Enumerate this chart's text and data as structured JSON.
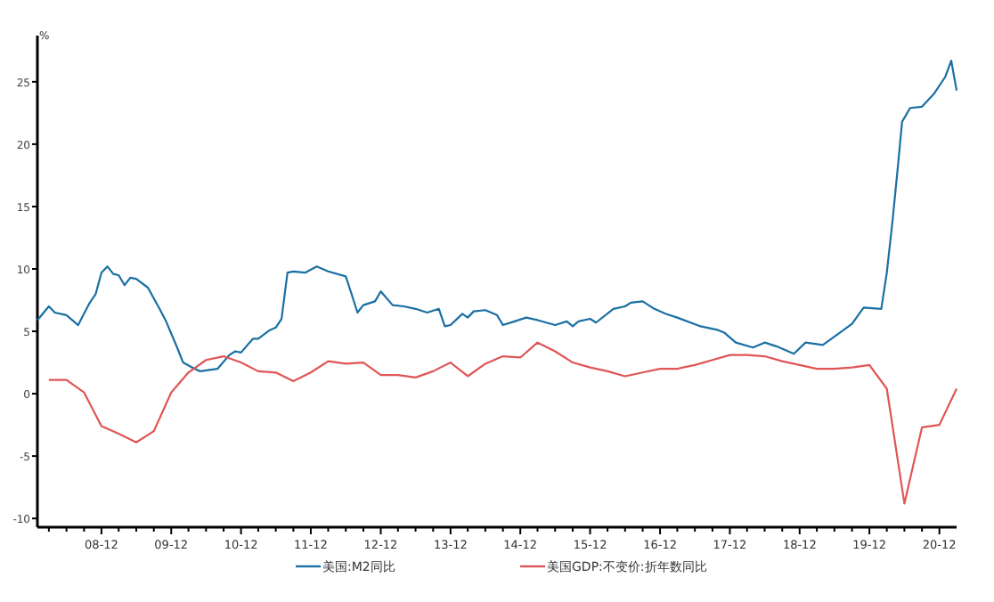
{
  "chart_data": {
    "type": "line",
    "ylabel": "%",
    "legend": "bottom",
    "xlim": [
      "2008-01",
      "2021-03"
    ],
    "ylim": [
      -10.7,
      28.7
    ],
    "yticks": [
      -10,
      -5,
      0,
      5,
      10,
      15,
      20,
      25
    ],
    "xticks": [
      {
        "value": "2008-03",
        "label": null
      },
      {
        "value": "2008-06",
        "label": null
      },
      {
        "value": "2008-09",
        "label": null
      },
      {
        "value": "2008-12",
        "label": "08-12"
      },
      {
        "value": "2009-03",
        "label": null
      },
      {
        "value": "2009-06",
        "label": null
      },
      {
        "value": "2009-09",
        "label": null
      },
      {
        "value": "2009-12",
        "label": "09-12"
      },
      {
        "value": "2010-03",
        "label": null
      },
      {
        "value": "2010-06",
        "label": null
      },
      {
        "value": "2010-09",
        "label": null
      },
      {
        "value": "2010-12",
        "label": "10-12"
      },
      {
        "value": "2011-03",
        "label": null
      },
      {
        "value": "2011-06",
        "label": null
      },
      {
        "value": "2011-09",
        "label": null
      },
      {
        "value": "2011-12",
        "label": "11-12"
      },
      {
        "value": "2012-03",
        "label": null
      },
      {
        "value": "2012-06",
        "label": null
      },
      {
        "value": "2012-09",
        "label": null
      },
      {
        "value": "2012-12",
        "label": "12-12"
      },
      {
        "value": "2013-03",
        "label": null
      },
      {
        "value": "2013-06",
        "label": null
      },
      {
        "value": "2013-09",
        "label": null
      },
      {
        "value": "2013-12",
        "label": "13-12"
      },
      {
        "value": "2014-03",
        "label": null
      },
      {
        "value": "2014-06",
        "label": null
      },
      {
        "value": "2014-09",
        "label": null
      },
      {
        "value": "2014-12",
        "label": "14-12"
      },
      {
        "value": "2015-03",
        "label": null
      },
      {
        "value": "2015-06",
        "label": null
      },
      {
        "value": "2015-09",
        "label": null
      },
      {
        "value": "2015-12",
        "label": "15-12"
      },
      {
        "value": "2016-03",
        "label": null
      },
      {
        "value": "2016-06",
        "label": null
      },
      {
        "value": "2016-09",
        "label": null
      },
      {
        "value": "2016-12",
        "label": "16-12"
      },
      {
        "value": "2017-03",
        "label": null
      },
      {
        "value": "2017-06",
        "label": null
      },
      {
        "value": "2017-09",
        "label": null
      },
      {
        "value": "2017-12",
        "label": "17-12"
      },
      {
        "value": "2018-03",
        "label": null
      },
      {
        "value": "2018-06",
        "label": null
      },
      {
        "value": "2018-09",
        "label": null
      },
      {
        "value": "2018-12",
        "label": "18-12"
      },
      {
        "value": "2019-03",
        "label": null
      },
      {
        "value": "2019-06",
        "label": null
      },
      {
        "value": "2019-09",
        "label": null
      },
      {
        "value": "2019-12",
        "label": "19-12"
      },
      {
        "value": "2020-03",
        "label": null
      },
      {
        "value": "2020-06",
        "label": null
      },
      {
        "value": "2020-09",
        "label": null
      },
      {
        "value": "2020-12",
        "label": "20-12"
      }
    ],
    "series": [
      {
        "name": "美国:M2同比",
        "color": "#1a6fa3",
        "x": [
          "2008-01",
          "2008-03",
          "2008-04",
          "2008-06",
          "2008-08",
          "2008-10",
          "2008-11",
          "2008-12",
          "2009-01",
          "2009-02",
          "2009-03",
          "2009-04",
          "2009-05",
          "2009-06",
          "2009-08",
          "2009-10",
          "2009-11",
          "2010-01",
          "2010-02",
          "2010-04",
          "2010-05",
          "2010-08",
          "2010-10",
          "2010-11",
          "2010-12",
          "2011-02",
          "2011-03",
          "2011-05",
          "2011-06",
          "2011-07",
          "2011-08",
          "2011-09",
          "2011-11",
          "2012-01",
          "2012-03",
          "2012-06",
          "2012-07",
          "2012-08",
          "2012-09",
          "2012-11",
          "2012-12",
          "2013-02",
          "2013-04",
          "2013-06",
          "2013-08",
          "2013-10",
          "2013-11",
          "2013-12",
          "2014-02",
          "2014-03",
          "2014-04",
          "2014-06",
          "2014-08",
          "2014-09",
          "2014-11",
          "2015-01",
          "2015-03",
          "2015-06",
          "2015-08",
          "2015-09",
          "2015-10",
          "2015-12",
          "2016-01",
          "2016-04",
          "2016-06",
          "2016-07",
          "2016-09",
          "2016-11",
          "2017-01",
          "2017-03",
          "2017-07",
          "2017-10",
          "2017-11",
          "2018-01",
          "2018-04",
          "2018-06",
          "2018-08",
          "2018-11",
          "2019-01",
          "2019-04",
          "2019-07",
          "2019-09",
          "2019-11",
          "2020-02",
          "2020-03",
          "2020-04",
          "2020-05-01",
          "2020-05-20",
          "2020-07",
          "2020-09",
          "2020-11",
          "2021-01",
          "2021-02",
          "2021-03"
        ],
        "values": [
          5.9,
          7.0,
          6.5,
          6.3,
          5.5,
          7.3,
          8.0,
          9.7,
          10.2,
          9.6,
          9.5,
          8.7,
          9.3,
          9.2,
          8.5,
          6.8,
          5.9,
          3.7,
          2.5,
          2.0,
          1.8,
          2.0,
          3.1,
          3.4,
          3.3,
          4.4,
          4.4,
          5.1,
          5.3,
          6.0,
          9.7,
          9.8,
          9.7,
          10.2,
          9.8,
          9.4,
          8.0,
          6.5,
          7.1,
          7.4,
          8.2,
          7.1,
          7.0,
          6.8,
          6.5,
          6.8,
          5.4,
          5.5,
          6.4,
          6.1,
          6.6,
          6.7,
          6.3,
          5.5,
          5.8,
          6.1,
          5.9,
          5.5,
          5.8,
          5.4,
          5.8,
          6.0,
          5.7,
          6.8,
          7.0,
          7.3,
          7.4,
          6.8,
          6.4,
          6.1,
          5.4,
          5.1,
          4.9,
          4.1,
          3.7,
          4.1,
          3.8,
          3.2,
          4.1,
          3.9,
          4.9,
          5.6,
          6.9,
          6.8,
          9.7,
          14.0,
          18.7,
          21.8,
          22.9,
          23.0,
          24.0,
          25.4,
          26.7,
          24.3
        ]
      },
      {
        "name": "美国GDP:不变价:折年数同比",
        "color": "#e05555",
        "x": [
          "2008-03",
          "2008-06",
          "2008-09",
          "2008-12",
          "2009-03",
          "2009-06",
          "2009-09",
          "2009-12",
          "2010-03",
          "2010-06",
          "2010-09",
          "2010-12",
          "2011-03",
          "2011-06",
          "2011-09",
          "2011-12",
          "2012-03",
          "2012-06",
          "2012-09",
          "2012-12",
          "2013-03",
          "2013-06",
          "2013-09",
          "2013-12",
          "2014-03",
          "2014-06",
          "2014-09",
          "2014-12",
          "2015-03",
          "2015-06",
          "2015-09",
          "2015-12",
          "2016-03",
          "2016-06",
          "2016-09",
          "2016-12",
          "2017-03",
          "2017-06",
          "2017-09",
          "2017-12",
          "2018-03",
          "2018-06",
          "2018-09",
          "2018-12",
          "2019-03",
          "2019-06",
          "2019-09",
          "2019-12",
          "2020-03",
          "2020-06",
          "2020-09",
          "2020-12",
          "2021-03"
        ],
        "values": [
          1.1,
          1.1,
          0.1,
          -2.6,
          -3.2,
          -3.9,
          -3.0,
          0.1,
          1.7,
          2.7,
          3.0,
          2.5,
          1.8,
          1.7,
          1.0,
          1.7,
          2.6,
          2.4,
          2.5,
          1.5,
          1.5,
          1.3,
          1.8,
          2.5,
          1.4,
          2.4,
          3.0,
          2.9,
          4.1,
          3.4,
          2.5,
          2.1,
          1.8,
          1.4,
          1.7,
          2.0,
          2.0,
          2.3,
          2.7,
          3.1,
          3.1,
          3.0,
          2.6,
          2.3,
          2.0,
          2.0,
          2.1,
          2.3,
          0.4,
          -8.8,
          -2.7,
          -2.5,
          0.4
        ]
      }
    ]
  }
}
